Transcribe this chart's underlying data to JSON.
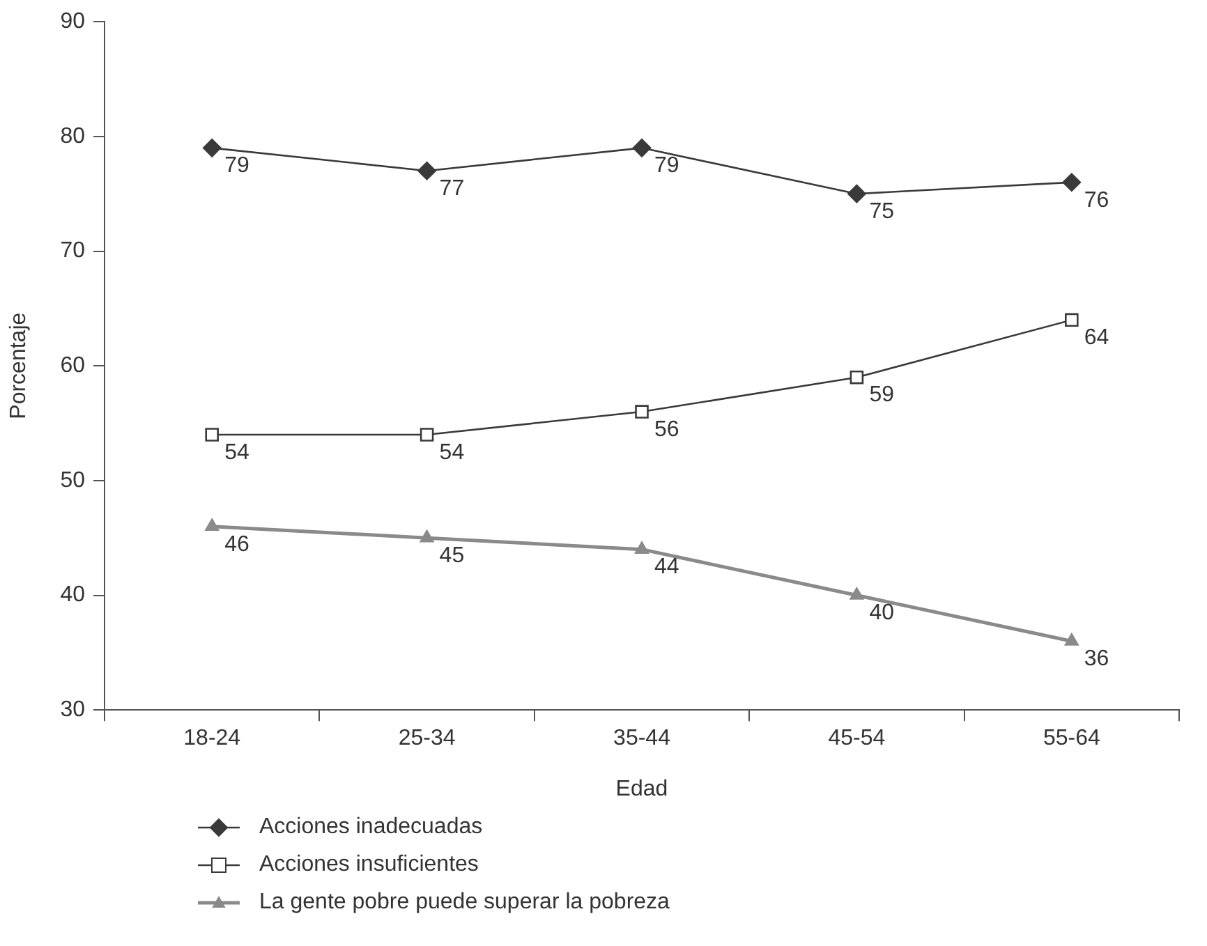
{
  "chart_data": {
    "type": "line",
    "xlabel": "Edad",
    "ylabel": "Porcentaje",
    "categories": [
      "18-24",
      "25-34",
      "35-44",
      "45-54",
      "55-64"
    ],
    "series": [
      {
        "name": "Acciones inadecuadas",
        "color": "#3a3a3a",
        "marker": "diamond",
        "values": [
          79,
          77,
          79,
          75,
          76
        ]
      },
      {
        "name": "Acciones insuficientes",
        "color": "#3a3a3a",
        "marker": "square",
        "values": [
          54,
          54,
          56,
          59,
          64
        ]
      },
      {
        "name": "La gente pobre puede superar la pobreza",
        "color": "#8a8a8a",
        "marker": "triangle",
        "values": [
          46,
          45,
          44,
          40,
          36
        ]
      }
    ],
    "ylim": [
      30,
      90
    ],
    "yticks": [
      30,
      40,
      50,
      60,
      70,
      80,
      90
    ],
    "grid": false,
    "legend": "bottom",
    "data_labels": true,
    "line_style": "solid"
  }
}
